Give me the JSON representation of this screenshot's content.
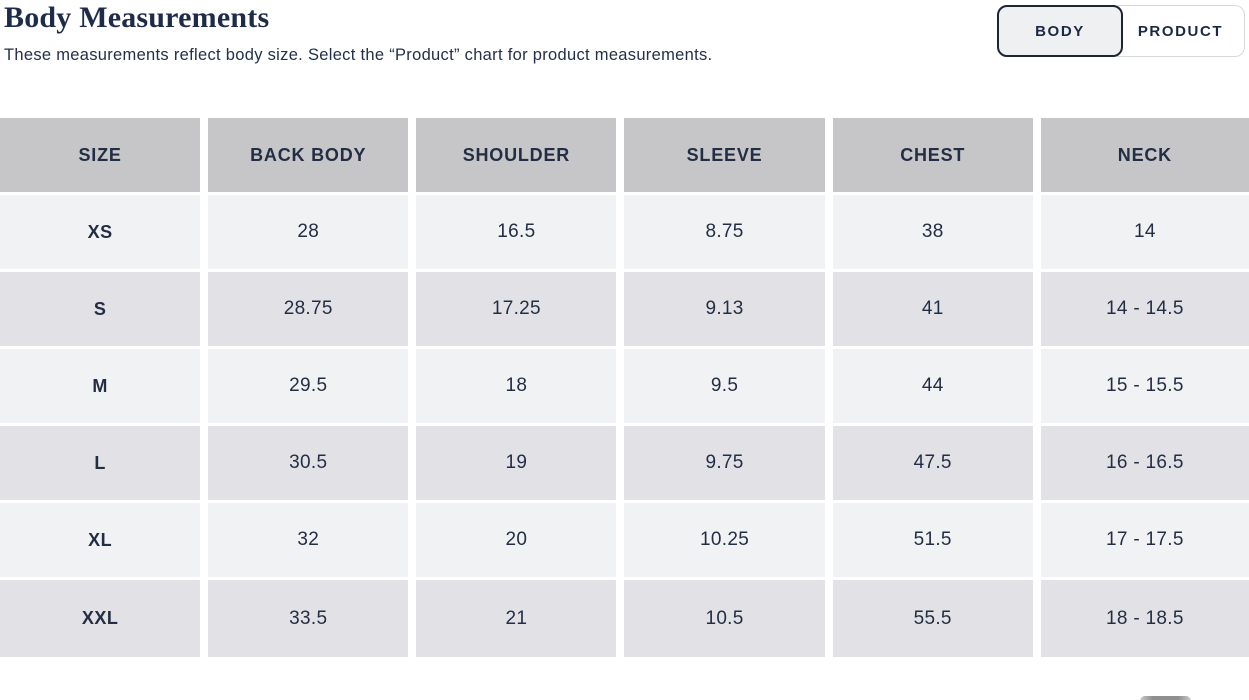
{
  "page": {
    "title": "Body Measurements",
    "subtitle": "These measurements reflect body size. Select the “Product” chart for product measurements."
  },
  "toggle": {
    "body_label": "BODY",
    "product_label": "PRODUCT",
    "active": "BODY"
  },
  "table": {
    "headers": [
      "SIZE",
      "BACK BODY",
      "SHOULDER",
      "SLEEVE",
      "CHEST",
      "NECK"
    ],
    "rows": [
      [
        "XS",
        "28",
        "16.5",
        "8.75",
        "38",
        "14"
      ],
      [
        "S",
        "28.75",
        "17.25",
        "9.13",
        "41",
        "14 - 14.5"
      ],
      [
        "M",
        "29.5",
        "18",
        "9.5",
        "44",
        "15 - 15.5"
      ],
      [
        "L",
        "30.5",
        "19",
        "9.75",
        "47.5",
        "16 - 16.5"
      ],
      [
        "XL",
        "32",
        "20",
        "10.25",
        "51.5",
        "17 - 17.5"
      ],
      [
        "XXL",
        "33.5",
        "21",
        "10.5",
        "55.5",
        "18 - 18.5"
      ]
    ]
  },
  "colors": {
    "header_bg": "#c6c6c9",
    "row_light": "#f1f2f4",
    "row_dark": "#e2e2e6",
    "text_navy": "#1f2c49",
    "toggle_active_bg": "#eef0f2",
    "toggle_active_border": "#1c2534"
  }
}
